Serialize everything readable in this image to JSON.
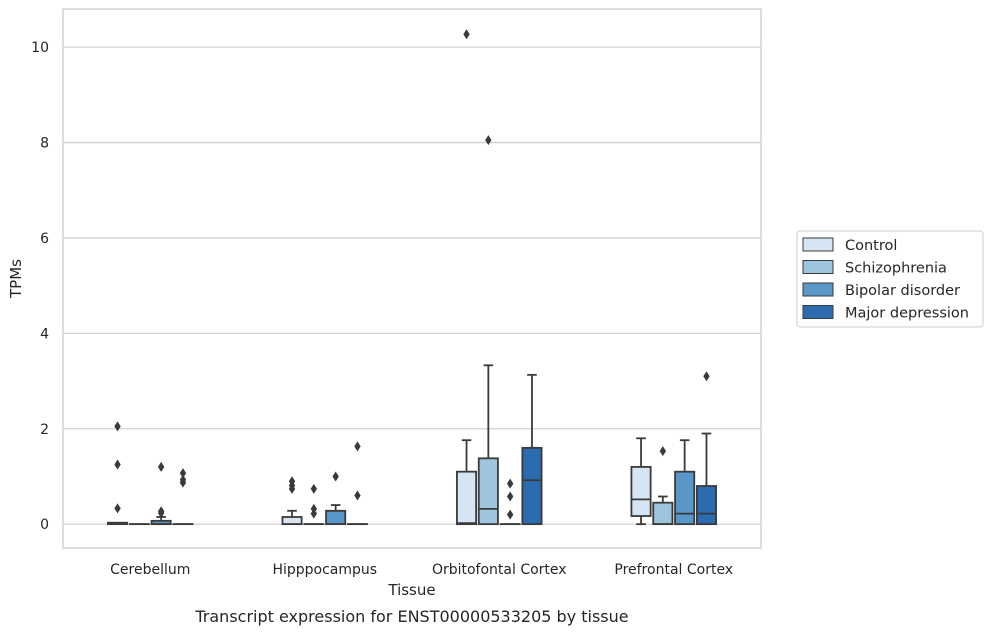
{
  "chart_data": {
    "type": "box",
    "title": "Transcript expression for ENST00000533205 by tissue",
    "xlabel": "Tissue",
    "ylabel": "TPMs",
    "ylim": [
      -0.5,
      10.8
    ],
    "yticks": [
      0,
      2,
      4,
      6,
      8,
      10
    ],
    "grid": "horizontal",
    "legend_position": "right",
    "categories": [
      "Cerebellum",
      "Hipppocampus",
      "Orbitofontal Cortex",
      "Prefrontal Cortex"
    ],
    "series": [
      {
        "name": "Control",
        "color": "#d6e5f3",
        "boxes": [
          {
            "q1": 0,
            "median": 0,
            "q3": 0.03,
            "whisker_low": 0,
            "whisker_high": 0.03,
            "outliers": [
              0.33,
              1.25,
              2.05
            ]
          },
          {
            "q1": 0,
            "median": 0,
            "q3": 0.15,
            "whisker_low": 0,
            "whisker_high": 0.28,
            "outliers": [
              0.74,
              0.81,
              0.9
            ]
          },
          {
            "q1": 0,
            "median": 0.02,
            "q3": 1.1,
            "whisker_low": 0,
            "whisker_high": 1.76,
            "outliers": [
              10.27
            ]
          },
          {
            "q1": 0.17,
            "median": 0.52,
            "q3": 1.2,
            "whisker_low": 0,
            "whisker_high": 1.8,
            "outliers": []
          }
        ]
      },
      {
        "name": "Schizophrenia",
        "color": "#9ec4de",
        "boxes": [
          {
            "q1": 0,
            "median": 0,
            "q3": 0,
            "whisker_low": 0,
            "whisker_high": 0,
            "outliers": []
          },
          {
            "q1": 0,
            "median": 0,
            "q3": 0,
            "whisker_low": 0,
            "whisker_high": 0,
            "outliers": [
              0.22,
              0.32,
              0.74
            ]
          },
          {
            "q1": 0,
            "median": 0.32,
            "q3": 1.38,
            "whisker_low": 0,
            "whisker_high": 3.33,
            "outliers": [
              8.05
            ]
          },
          {
            "q1": 0,
            "median": 0,
            "q3": 0.45,
            "whisker_low": 0,
            "whisker_high": 0.58,
            "outliers": [
              1.53
            ]
          }
        ]
      },
      {
        "name": "Bipolar disorder",
        "color": "#5a97c9",
        "boxes": [
          {
            "q1": 0,
            "median": 0,
            "q3": 0.07,
            "whisker_low": 0,
            "whisker_high": 0.15,
            "outliers": [
              0.23,
              0.27,
              1.2
            ]
          },
          {
            "q1": 0,
            "median": 0,
            "q3": 0.28,
            "whisker_low": 0,
            "whisker_high": 0.4,
            "outliers": [
              1.0
            ]
          },
          {
            "q1": 0,
            "median": 0,
            "q3": 0,
            "whisker_low": 0,
            "whisker_high": 0,
            "outliers": [
              0.2,
              0.58,
              0.85
            ]
          },
          {
            "q1": 0,
            "median": 0.22,
            "q3": 1.1,
            "whisker_low": 0,
            "whisker_high": 1.76,
            "outliers": []
          }
        ]
      },
      {
        "name": "Major depression",
        "color": "#2b6cb0",
        "boxes": [
          {
            "q1": 0,
            "median": 0,
            "q3": 0,
            "whisker_low": 0,
            "whisker_high": 0,
            "outliers": [
              0.87,
              0.93,
              1.07
            ]
          },
          {
            "q1": 0,
            "median": 0,
            "q3": 0,
            "whisker_low": 0,
            "whisker_high": 0,
            "outliers": [
              0.6,
              1.63
            ]
          },
          {
            "q1": 0,
            "median": 0.92,
            "q3": 1.6,
            "whisker_low": 0,
            "whisker_high": 3.13,
            "outliers": []
          },
          {
            "q1": 0,
            "median": 0.22,
            "q3": 0.8,
            "whisker_low": 0,
            "whisker_high": 1.9,
            "outliers": [
              3.1
            ]
          }
        ]
      }
    ]
  }
}
